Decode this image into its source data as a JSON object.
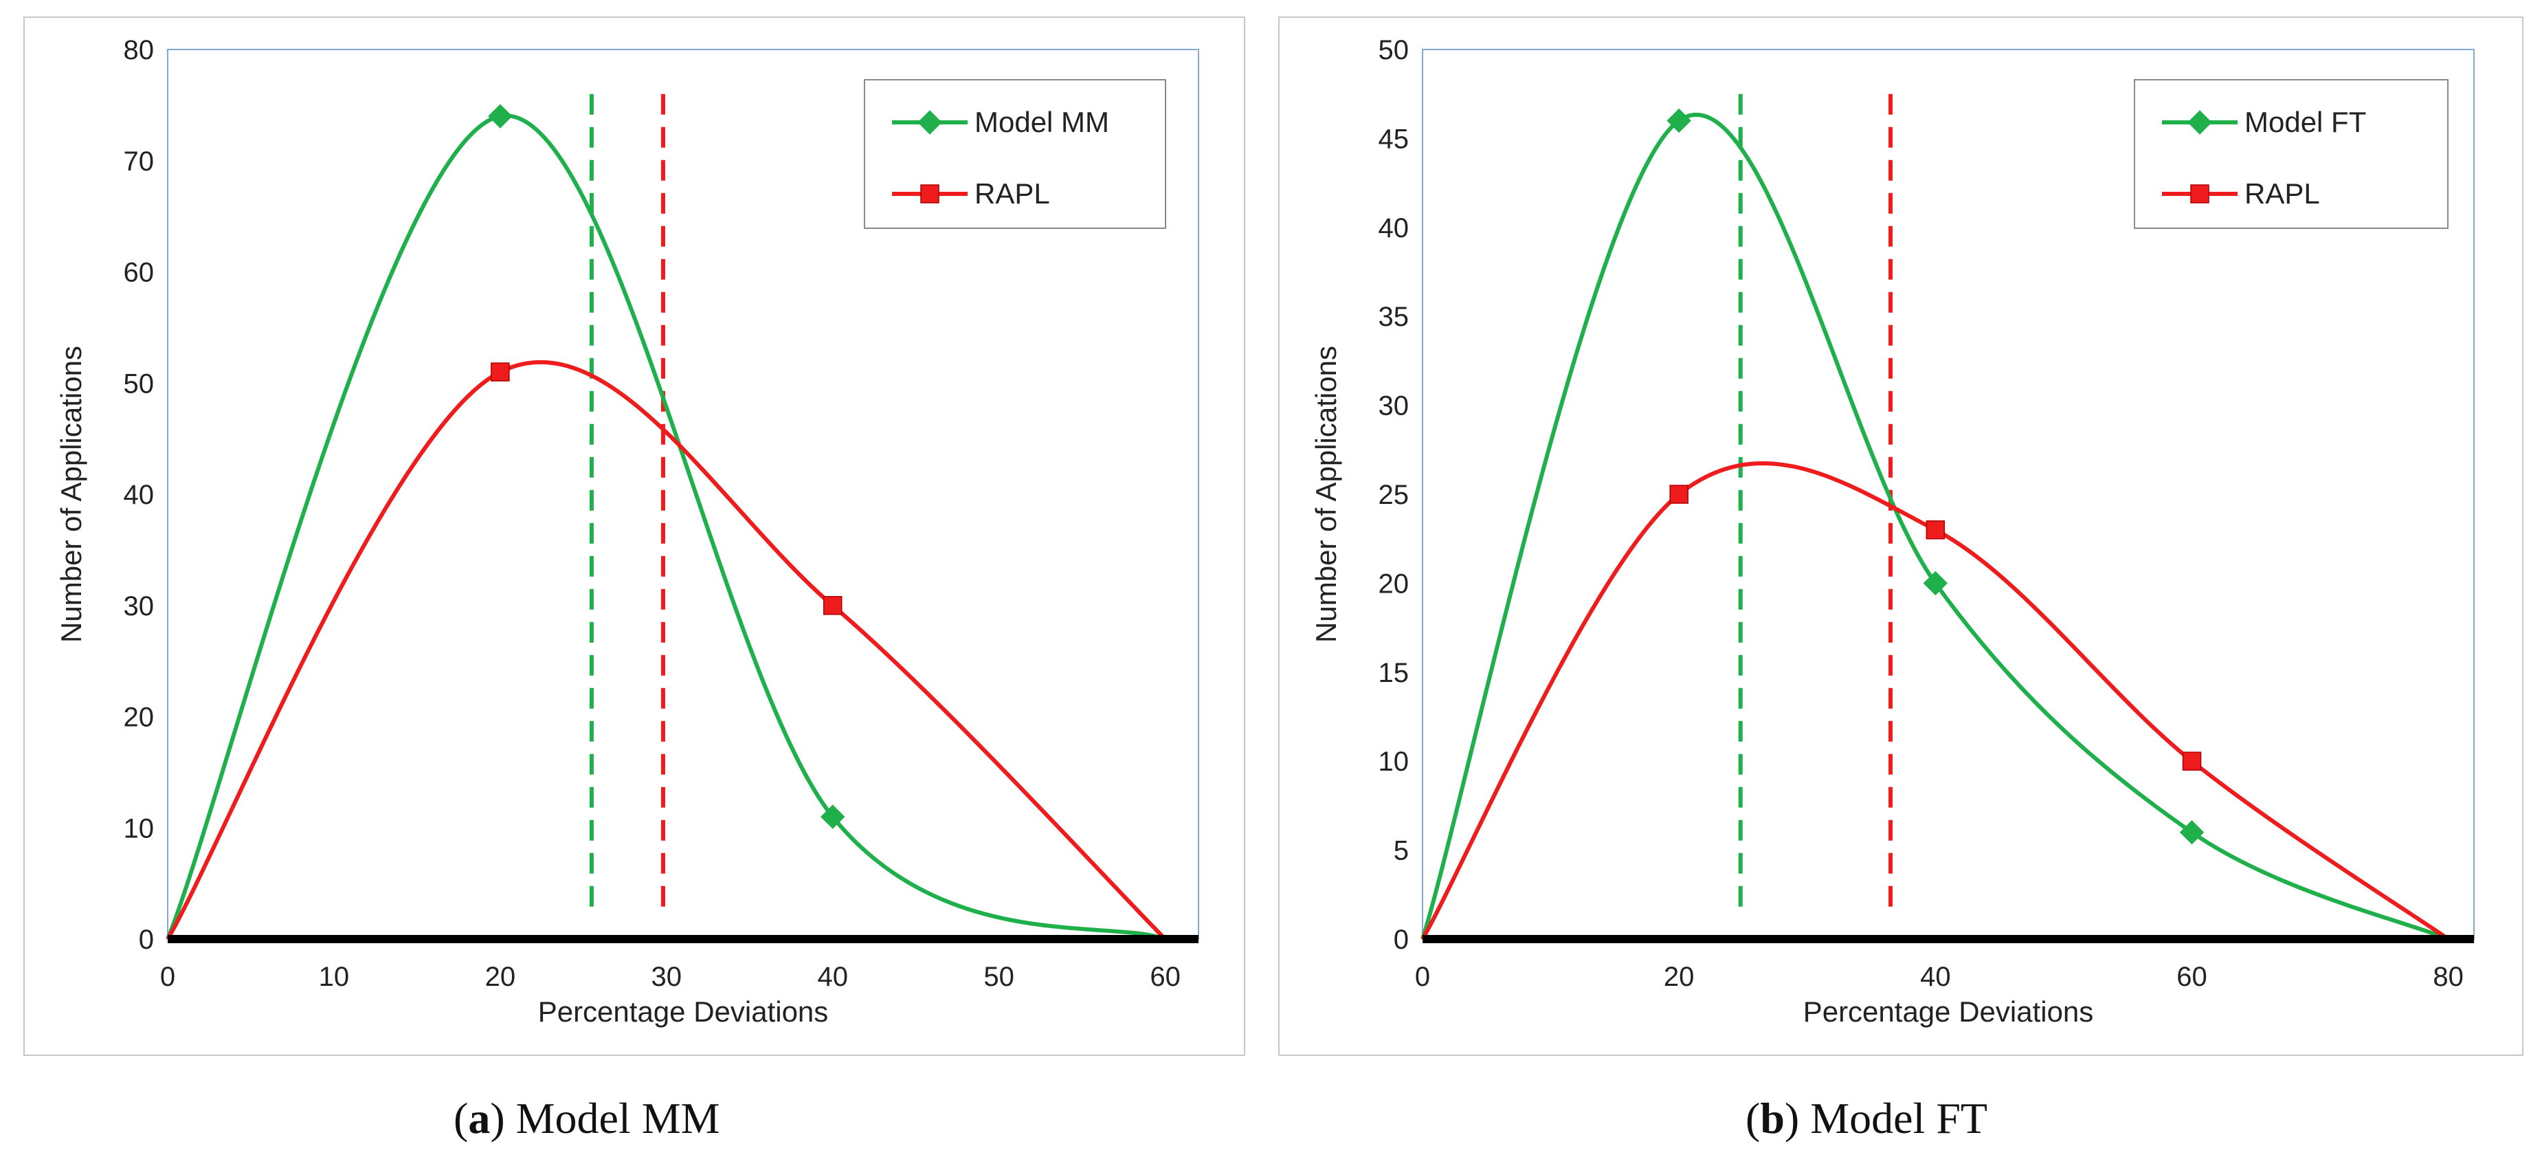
{
  "chart_data": [
    {
      "id": "a",
      "type": "line",
      "caption": {
        "letter": "a",
        "text": "Model MM"
      },
      "xlabel": "Percentage Deviations",
      "ylabel": "Number of Applications",
      "xlim": [
        0,
        62
      ],
      "ylim": [
        0,
        80
      ],
      "xticks": [
        0,
        10,
        20,
        30,
        40,
        50,
        60
      ],
      "yticks": [
        0,
        10,
        20,
        30,
        40,
        50,
        60,
        70,
        80
      ],
      "series": [
        {
          "name": "Model MM",
          "color": "#1fb04b",
          "marker": "diamond",
          "x": [
            0,
            20,
            40,
            60
          ],
          "y": [
            0,
            74,
            11,
            0
          ]
        },
        {
          "name": "RAPL",
          "color": "#ee1c1c",
          "marker": "square",
          "x": [
            0,
            20,
            40,
            60
          ],
          "y": [
            0,
            51,
            30,
            0
          ]
        }
      ],
      "vlines": [
        {
          "x": 25.5,
          "color": "#1fb04b"
        },
        {
          "x": 29.8,
          "color": "#ee1c1c"
        }
      ]
    },
    {
      "id": "b",
      "type": "line",
      "caption": {
        "letter": "b",
        "text": "Model FT"
      },
      "xlabel": "Percentage Deviations",
      "ylabel": "Number of Applications",
      "xlim": [
        0,
        82
      ],
      "ylim": [
        0,
        50
      ],
      "xticks": [
        0,
        20,
        40,
        60,
        80
      ],
      "yticks": [
        0,
        5,
        10,
        15,
        20,
        25,
        30,
        35,
        40,
        45,
        50
      ],
      "series": [
        {
          "name": "Model FT",
          "color": "#1fb04b",
          "marker": "diamond",
          "x": [
            0,
            20,
            40,
            60,
            80
          ],
          "y": [
            0,
            46,
            20,
            6,
            0
          ]
        },
        {
          "name": "RAPL",
          "color": "#ee1c1c",
          "marker": "square",
          "x": [
            0,
            20,
            40,
            60,
            80
          ],
          "y": [
            0,
            25,
            23,
            10,
            0
          ]
        }
      ],
      "vlines": [
        {
          "x": 24.8,
          "color": "#1fb04b"
        },
        {
          "x": 36.5,
          "color": "#ee1c1c"
        }
      ]
    }
  ]
}
